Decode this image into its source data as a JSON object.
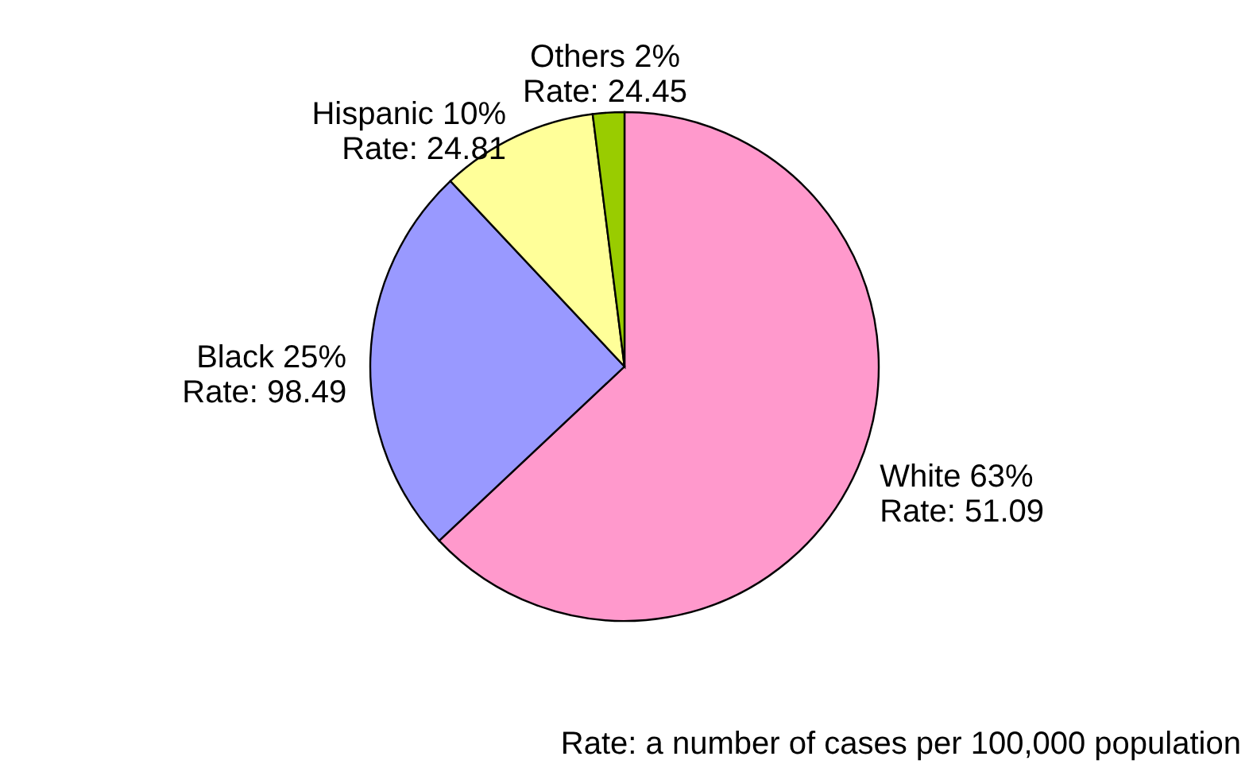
{
  "chart_data": {
    "type": "pie",
    "categories": [
      "White",
      "Black",
      "Hispanic",
      "Others"
    ],
    "values": [
      63,
      25,
      10,
      2
    ],
    "value_labels": [
      "63%",
      "25%",
      "10%",
      "2%"
    ],
    "colors": [
      "#ff99cc",
      "#9999ff",
      "#ffff99",
      "#99cc00"
    ],
    "annotations": [
      {
        "text": "Rate: 51.09",
        "x": "White"
      },
      {
        "text": "Rate: 98.49",
        "x": "Black"
      },
      {
        "text": "Rate: 24.81",
        "x": "Hispanic"
      },
      {
        "text": "Rate: 24.45",
        "x": "Others"
      },
      "Rate: a number of cases per 100,000 population"
    ],
    "legend": false
  }
}
